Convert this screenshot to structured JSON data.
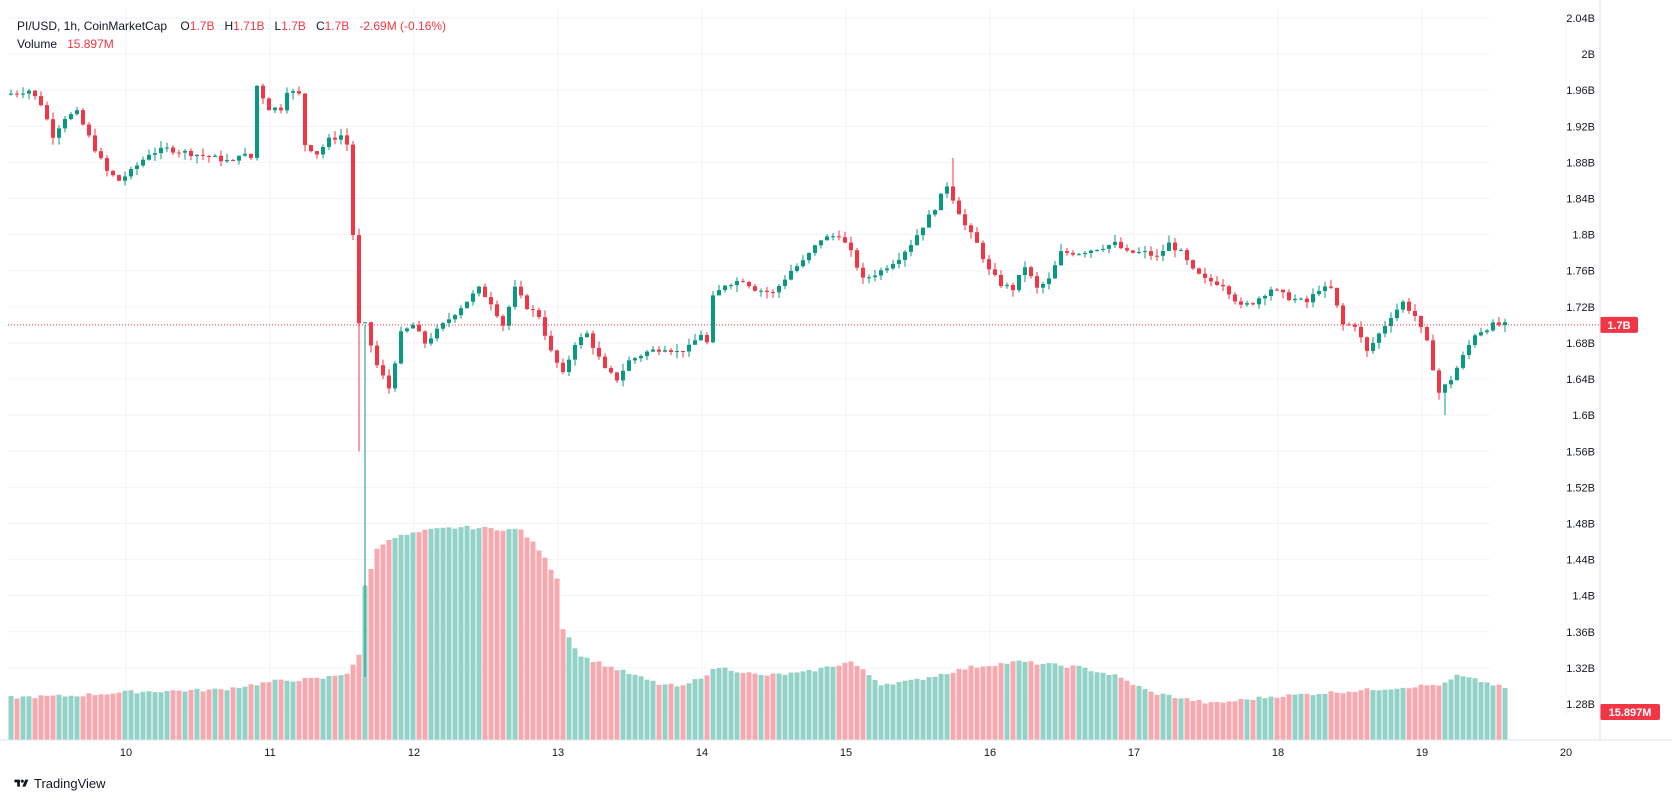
{
  "legend": {
    "symbol": "PI/USD, 1h, CoinMarketCap",
    "o_label": "O",
    "o_value": "1.7B",
    "h_label": "H",
    "h_value": "1.71B",
    "l_label": "L",
    "l_value": "1.7B",
    "c_label": "C",
    "c_value": "1.7B",
    "change": "-2.69M (-0.16%)",
    "volume_label": "Volume",
    "volume_value": "15.897M"
  },
  "footer": {
    "brand": "TradingView",
    "logo_icon": "tradingview-logo-icon"
  },
  "colors": {
    "up": "#089981",
    "down": "#f23645",
    "vol_up": "#93d2c7",
    "vol_down": "#f7a9b0",
    "grid": "#f0f3fa",
    "axis_text": "#131722"
  },
  "chart_data": {
    "type": "candlestick",
    "title": "PI/USD, 1h, CoinMarketCap",
    "price_axis": {
      "ticks": [
        "2.04B",
        "2B",
        "1.96B",
        "1.92B",
        "1.88B",
        "1.84B",
        "1.8B",
        "1.76B",
        "1.72B",
        "1.68B",
        "1.64B",
        "1.6B",
        "1.56B",
        "1.52B",
        "1.48B",
        "1.44B",
        "1.4B",
        "1.36B",
        "1.32B",
        "1.28B"
      ],
      "range": [
        1.28,
        2.04
      ],
      "unit": "B"
    },
    "time_axis": {
      "ticks": [
        "10",
        "11",
        "12",
        "13",
        "14",
        "15",
        "16",
        "17",
        "18",
        "19",
        "20"
      ]
    },
    "last_price_label": "1.7B",
    "last_volume_label": "15.897M",
    "grid": true,
    "series": [
      {
        "name": "PI/USD",
        "type": "ohlc_path",
        "bars": 250,
        "start_time": "Day 9 08:00",
        "interval": "1h",
        "anchors": [
          [
            0,
            1.955
          ],
          [
            4,
            1.96
          ],
          [
            6,
            1.945
          ],
          [
            8,
            1.91
          ],
          [
            10,
            1.93
          ],
          [
            12,
            1.935
          ],
          [
            15,
            1.895
          ],
          [
            17,
            1.87
          ],
          [
            19,
            1.86
          ],
          [
            21,
            1.87
          ],
          [
            24,
            1.89
          ],
          [
            27,
            1.895
          ],
          [
            31,
            1.89
          ],
          [
            35,
            1.885
          ],
          [
            38,
            1.88
          ],
          [
            39,
            1.89
          ],
          [
            41,
            1.885
          ],
          [
            42,
            1.965
          ],
          [
            44,
            1.94
          ],
          [
            46,
            1.94
          ],
          [
            47,
            1.96
          ],
          [
            49,
            1.955
          ],
          [
            50,
            1.9
          ],
          [
            52,
            1.89
          ],
          [
            54,
            1.905
          ],
          [
            56,
            1.91
          ],
          [
            57,
            1.9
          ],
          [
            58,
            1.8
          ],
          [
            59,
            1.7
          ],
          [
            60,
            1.7
          ],
          [
            62,
            1.655
          ],
          [
            64,
            1.63
          ],
          [
            66,
            1.69
          ],
          [
            68,
            1.7
          ],
          [
            70,
            1.68
          ],
          [
            73,
            1.7
          ],
          [
            76,
            1.72
          ],
          [
            79,
            1.74
          ],
          [
            81,
            1.725
          ],
          [
            83,
            1.7
          ],
          [
            85,
            1.74
          ],
          [
            87,
            1.72
          ],
          [
            89,
            1.71
          ],
          [
            91,
            1.67
          ],
          [
            93,
            1.645
          ],
          [
            95,
            1.68
          ],
          [
            97,
            1.69
          ],
          [
            100,
            1.65
          ],
          [
            102,
            1.64
          ],
          [
            104,
            1.66
          ],
          [
            107,
            1.67
          ],
          [
            110,
            1.675
          ],
          [
            112,
            1.67
          ],
          [
            114,
            1.675
          ],
          [
            116,
            1.69
          ],
          [
            117,
            1.68
          ],
          [
            118,
            1.73
          ],
          [
            120,
            1.745
          ],
          [
            123,
            1.75
          ],
          [
            125,
            1.74
          ],
          [
            128,
            1.735
          ],
          [
            131,
            1.76
          ],
          [
            133,
            1.77
          ],
          [
            136,
            1.795
          ],
          [
            139,
            1.8
          ],
          [
            141,
            1.78
          ],
          [
            143,
            1.75
          ],
          [
            146,
            1.76
          ],
          [
            149,
            1.775
          ],
          [
            151,
            1.79
          ],
          [
            153,
            1.81
          ],
          [
            155,
            1.83
          ],
          [
            157,
            1.855
          ],
          [
            158,
            1.84
          ],
          [
            160,
            1.81
          ],
          [
            162,
            1.79
          ],
          [
            164,
            1.76
          ],
          [
            166,
            1.745
          ],
          [
            168,
            1.74
          ],
          [
            170,
            1.765
          ],
          [
            172,
            1.74
          ],
          [
            174,
            1.75
          ],
          [
            176,
            1.78
          ],
          [
            179,
            1.78
          ],
          [
            182,
            1.785
          ],
          [
            185,
            1.79
          ],
          [
            187,
            1.78
          ],
          [
            190,
            1.78
          ],
          [
            192,
            1.775
          ],
          [
            194,
            1.79
          ],
          [
            196,
            1.78
          ],
          [
            198,
            1.76
          ],
          [
            200,
            1.75
          ],
          [
            203,
            1.745
          ],
          [
            206,
            1.72
          ],
          [
            208,
            1.725
          ],
          [
            211,
            1.74
          ],
          [
            214,
            1.73
          ],
          [
            217,
            1.725
          ],
          [
            219,
            1.74
          ],
          [
            221,
            1.74
          ],
          [
            223,
            1.7
          ],
          [
            225,
            1.7
          ],
          [
            227,
            1.67
          ],
          [
            229,
            1.69
          ],
          [
            231,
            1.71
          ],
          [
            233,
            1.725
          ],
          [
            235,
            1.71
          ],
          [
            237,
            1.68
          ],
          [
            239,
            1.625
          ],
          [
            241,
            1.64
          ],
          [
            243,
            1.665
          ],
          [
            245,
            1.69
          ],
          [
            248,
            1.7
          ],
          [
            249,
            1.7
          ]
        ]
      },
      {
        "name": "Volume",
        "type": "volume_path",
        "anchors": [
          [
            0,
            15.2
          ],
          [
            10,
            15.8
          ],
          [
            20,
            17.2
          ],
          [
            35,
            18.0
          ],
          [
            44,
            21.0
          ],
          [
            52,
            22.0
          ],
          [
            56,
            24.0
          ],
          [
            58,
            30.0
          ],
          [
            59,
            55.0
          ],
          [
            61,
            68.0
          ],
          [
            63,
            72.0
          ],
          [
            70,
            75.0
          ],
          [
            75,
            76.0
          ],
          [
            80,
            75.5
          ],
          [
            85,
            75.0
          ],
          [
            88,
            68.0
          ],
          [
            91,
            58.0
          ],
          [
            92,
            40.0
          ],
          [
            95,
            30.0
          ],
          [
            100,
            26.0
          ],
          [
            108,
            20.0
          ],
          [
            112,
            19.0
          ],
          [
            118,
            26.0
          ],
          [
            125,
            23.0
          ],
          [
            132,
            24.0
          ],
          [
            140,
            28.0
          ],
          [
            145,
            20.0
          ],
          [
            150,
            21.0
          ],
          [
            160,
            26.0
          ],
          [
            168,
            28.0
          ],
          [
            178,
            26.0
          ],
          [
            184,
            23.0
          ],
          [
            190,
            17.0
          ],
          [
            200,
            13.0
          ],
          [
            210,
            15.5
          ],
          [
            220,
            17.0
          ],
          [
            230,
            18.5
          ],
          [
            239,
            20.0
          ],
          [
            241,
            23.0
          ],
          [
            245,
            21.0
          ],
          [
            250,
            18.0
          ],
          [
            258,
            13.0
          ],
          [
            262,
            10.0
          ],
          [
            270,
            8.0
          ],
          [
            282,
            8.3
          ],
          [
            290,
            10.0
          ],
          [
            300,
            12.0
          ]
        ]
      }
    ]
  }
}
